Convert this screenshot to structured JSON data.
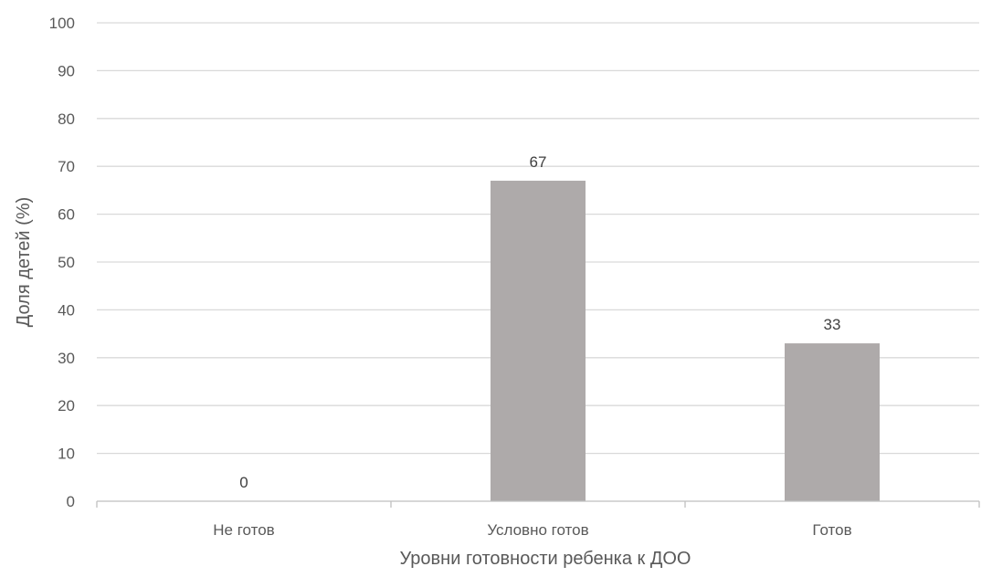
{
  "chart_data": {
    "type": "bar",
    "title": "",
    "xlabel": "Уровни готовности ребенка к ДОО",
    "ylabel": "Доля  детей  (%)",
    "categories": [
      "Не готов",
      "Условно готов",
      "Готов"
    ],
    "values": [
      0,
      67,
      33
    ],
    "data_labels": [
      "0",
      "67",
      "33"
    ],
    "ylim": [
      0,
      100
    ],
    "yticks": [
      0,
      10,
      20,
      30,
      40,
      50,
      60,
      70,
      80,
      90,
      100
    ],
    "grid": true,
    "legend": "none",
    "bar_color": "#aeaaaa",
    "grid_color": "#d9d9d9"
  }
}
